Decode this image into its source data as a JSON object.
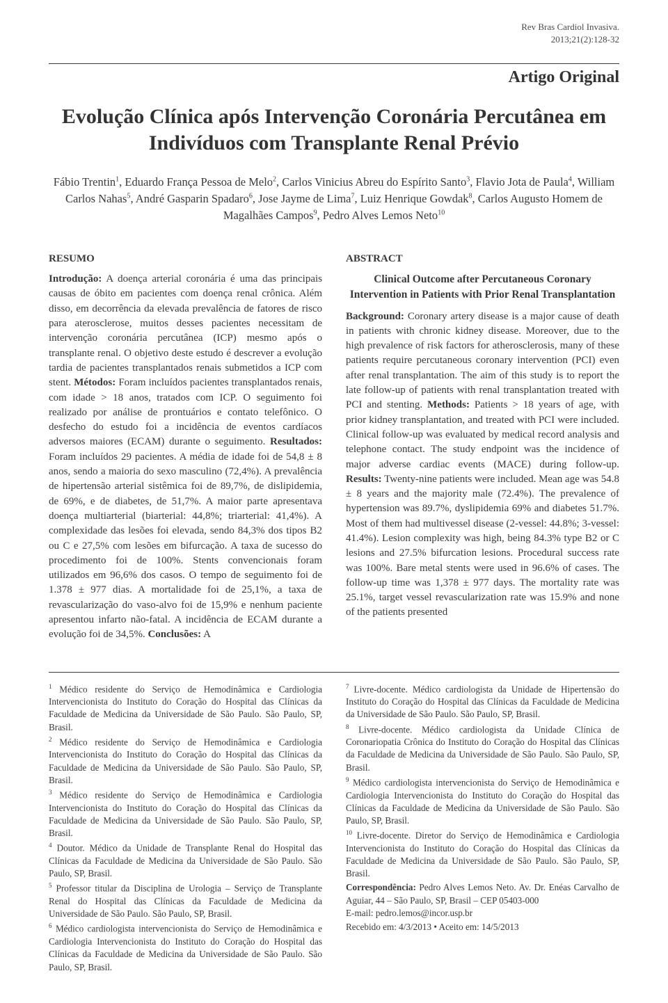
{
  "journal": {
    "name": "Rev Bras Cardiol Invasiva.",
    "issue": "2013;21(2):128-32"
  },
  "article_type": "Artigo Original",
  "title": "Evolução Clínica após Intervenção Coronária Percutânea em Indivíduos com Transplante Renal Prévio",
  "authors_html": "Fábio Trentin<sup>1</sup>, Eduardo França Pessoa de Melo<sup>2</sup>, Carlos Vinicius Abreu do Espírito Santo<sup>3</sup>, Flavio Jota de Paula<sup>4</sup>, William Carlos Nahas<sup>5</sup>, André Gasparin Spadaro<sup>6</sup>, Jose Jayme de Lima<sup>7</sup>, Luiz Henrique Gowdak<sup>8</sup>, Carlos Augusto Homem de Magalhães Campos<sup>9</sup>, Pedro Alves Lemos Neto<sup>10</sup>",
  "resumo": {
    "heading": "RESUMO",
    "body_html": "<span class='bold'>Introdução:</span> A doença arterial coronária é uma das principais causas de óbito em pacientes com doença renal crônica. Além disso, em decorrência da elevada prevalência de fatores de risco para aterosclerose, muitos desses pacientes necessitam de intervenção coronária percutânea (ICP) mesmo após o transplante renal. O objetivo deste estudo é descrever a evolução tardia de pacientes transplantados renais submetidos a ICP com stent. <span class='bold'>Métodos:</span> Foram incluídos pacientes transplantados renais, com idade > 18 anos, tratados com ICP. O seguimento foi realizado por análise de prontuários e contato telefônico. O desfecho do estudo foi a incidência de eventos cardíacos adversos maiores (ECAM) durante o seguimento. <span class='bold'>Resultados:</span> Foram incluídos 29 pacientes. A média de idade foi de 54,8 ± 8 anos, sendo a maioria do sexo masculino (72,4%). A prevalência de hipertensão arterial sistêmica foi de 89,7%, de dislipidemia, de 69%, e de diabetes, de 51,7%. A maior parte apresentava doença multiarterial (biarterial: 44,8%; triarterial: 41,4%). A complexidade das lesões foi elevada, sendo 84,3% dos tipos B2 ou C e 27,5% com lesões em bifurcação. A taxa de sucesso do procedimento foi de 100%. Stents convencionais foram utilizados em 96,6% dos casos. O tempo de seguimento foi de 1.378 ± 977 dias. A mortalidade foi de 25,1%, a taxa de revascularização do vaso-alvo foi de 15,9% e nenhum paciente apresentou infarto não-fatal. A incidência de ECAM durante a evolução foi de 34,5%. <span class='bold'>Conclusões:</span> A"
  },
  "abstract": {
    "heading": "ABSTRACT",
    "title": "Clinical Outcome after Percutaneous Coronary Intervention in Patients with Prior Renal Transplantation",
    "body_html": "<span class='bold'>Background:</span> Coronary artery disease is a major cause of death in patients with chronic kidney disease. Moreover, due to the high prevalence of risk factors for atherosclerosis, many of these patients require percutaneous coronary intervention (PCI) even after renal transplantation. The aim of this study is to report the late follow-up of patients with renal transplantation treated with PCI and stenting. <span class='bold'>Methods:</span> Patients > 18 years of age, with prior kidney transplantation, and treated with PCI were included. Clinical follow-up was evaluated by medical record analysis and telephone contact. The study endpoint was the incidence of major adverse cardiac events (MACE) during follow-up. <span class='bold'>Results:</span> Twenty-nine patients were included. Mean age was 54.8 ± 8 years and the majority male (72.4%). The prevalence of hypertension was 89.7%, dyslipidemia 69% and diabetes 51.7%. Most of them had multivessel disease (2-vessel: 44.8%; 3-vessel: 41.4%). Lesion complexity was high, being 84.3% type B2 or C lesions and 27.5% bifurcation lesions. Procedural success rate was 100%. Bare metal stents were used in 96.6% of cases. The follow-up time was 1,378 ± 977 days. The mortality rate was 25.1%, target vessel revascularization rate was 15.9% and none of the patients presented"
  },
  "affiliations_left": [
    "<sup>1</sup> Médico residente do Serviço de Hemodinâmica e Cardiologia Intervencionista do Instituto do Coração do Hospital das Clínicas da Faculdade de Medicina da Universidade de São Paulo. São Paulo, SP, Brasil.",
    "<sup>2</sup> Médico residente do Serviço de Hemodinâmica e Cardiologia Intervencionista do Instituto do Coração do Hospital das Clínicas da Faculdade de Medicina da Universidade de São Paulo. São Paulo, SP, Brasil.",
    "<sup>3</sup> Médico residente do Serviço de Hemodinâmica e Cardiologia Intervencionista do Instituto do Coração do Hospital das Clínicas da Faculdade de Medicina da Universidade de São Paulo. São Paulo, SP, Brasil.",
    "<sup>4</sup> Doutor. Médico da Unidade de Transplante Renal do Hospital das Clínicas da Faculdade de Medicina da Universidade de São Paulo. São Paulo, SP, Brasil.",
    "<sup>5</sup> Professor titular da Disciplina de Urologia – Serviço de Transplante Renal do Hospital das Clínicas da Faculdade de Medicina da Universidade de São Paulo. São Paulo, SP, Brasil.",
    "<sup>6</sup> Médico cardiologista intervencionista do Serviço de Hemodinâmica e Cardiologia Intervencionista do Instituto do Coração do Hospital das Clínicas da Faculdade de Medicina da Universidade de São Paulo. São Paulo, SP, Brasil."
  ],
  "affiliations_right": [
    "<sup>7</sup> Livre-docente. Médico cardiologista da Unidade de Hipertensão do Instituto do Coração do Hospital das Clínicas da Faculdade de Medicina da Universidade de São Paulo. São Paulo, SP, Brasil.",
    "<sup>8</sup> Livre-docente. Médico cardiologista da Unidade Clínica de Coronariopatia Crônica do Instituto do Coração do Hospital das Clínicas da Faculdade de Medicina da Universidade de São Paulo. São Paulo, SP, Brasil.",
    "<sup>9</sup> Médico cardiologista intervencionista do Serviço de Hemodinâmica e Cardiologia Intervencionista do Instituto do Coração do Hospital das Clínicas da Faculdade de Medicina da Universidade de São Paulo. São Paulo, SP, Brasil.",
    "<sup>10</sup> Livre-docente. Diretor do Serviço de Hemodinâmica e Cardiologia Intervencionista do Instituto do Coração do Hospital das Clínicas da Faculdade de Medicina da Universidade de São Paulo. São Paulo, SP, Brasil."
  ],
  "correspondence": {
    "label": "Correspondência:",
    "text": "Pedro Alves Lemos Neto. Av. Dr. Enéas Carvalho de Aguiar, 44 – São Paulo, SP, Brasil – CEP 05403-000",
    "email_label": "E-mail:",
    "email": "pedro.lemos@incor.usp.br"
  },
  "dates": "Recebido em: 4/3/2013 • Aceito em: 14/5/2013"
}
